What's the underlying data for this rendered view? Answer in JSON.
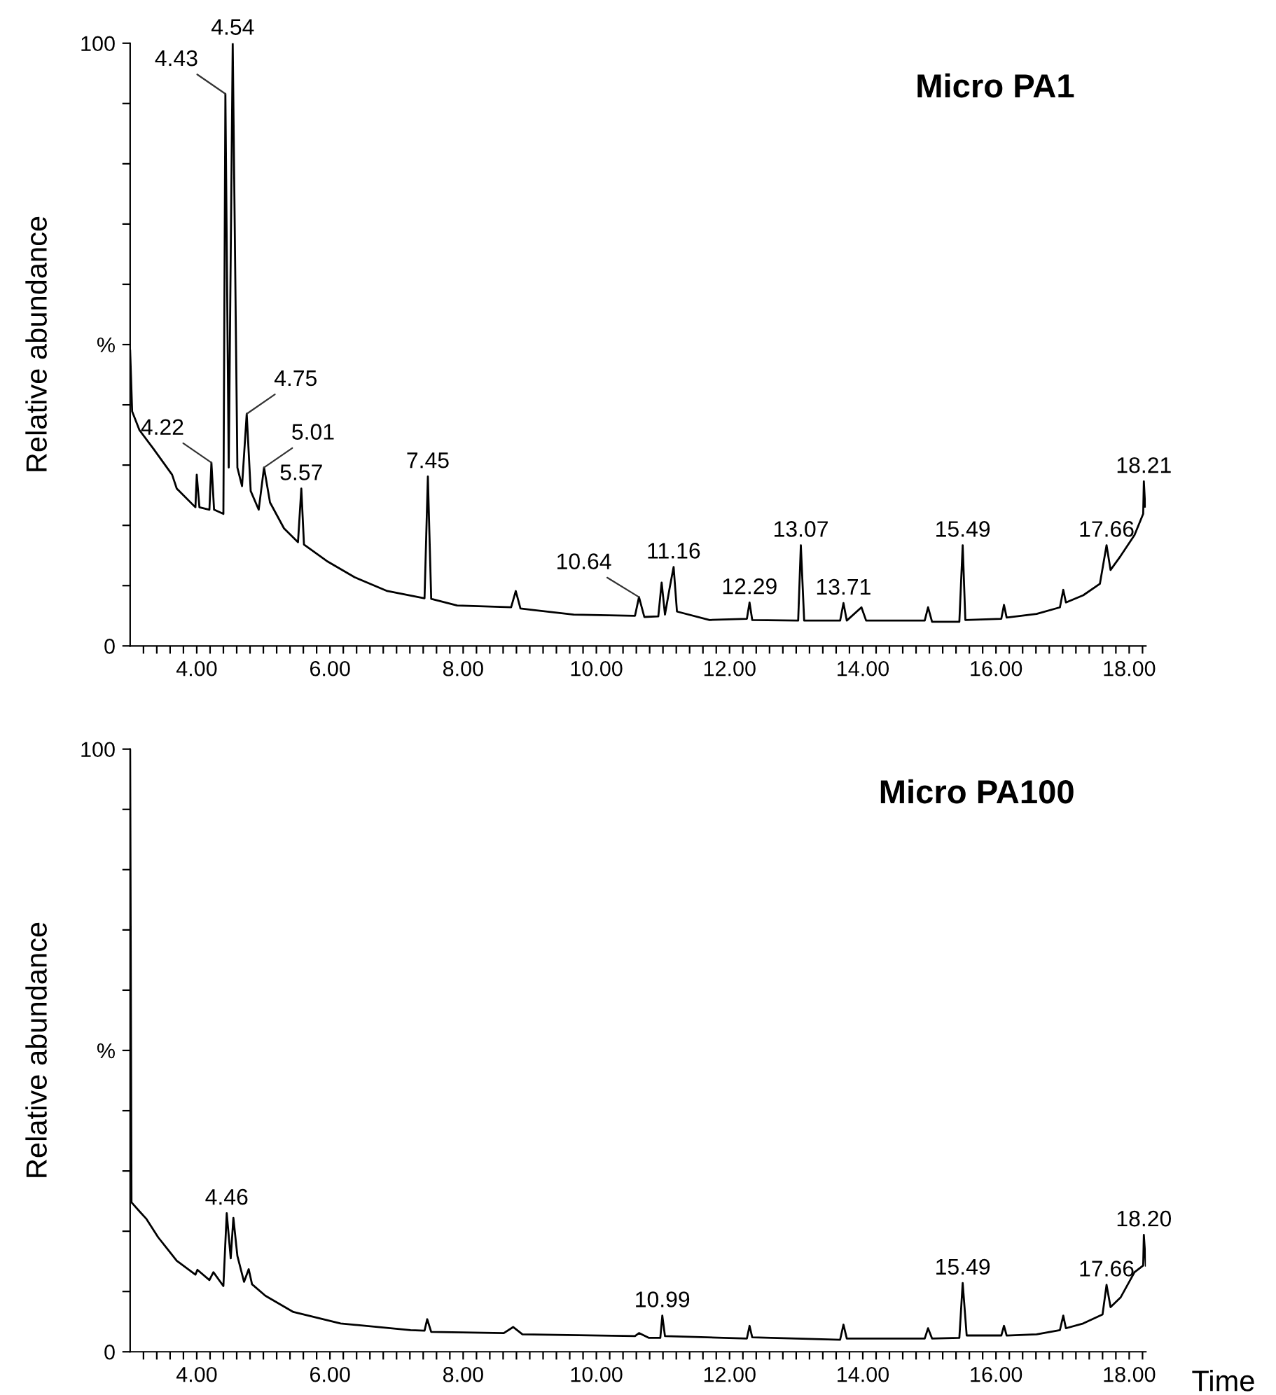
{
  "chart_data": [
    {
      "type": "line",
      "title": "Micro PA1",
      "ylabel": "Relative abundance",
      "xlim": [
        3.0,
        18.25
      ],
      "ylim": [
        0,
        100
      ],
      "xticks": [
        {
          "value": 3.2,
          "label": null
        },
        {
          "value": 3.4,
          "label": null
        },
        {
          "value": 3.6,
          "label": null
        },
        {
          "value": 3.8,
          "label": null
        },
        {
          "value": 4,
          "label": "4.00"
        },
        {
          "value": 4.2,
          "label": null
        },
        {
          "value": 4.4,
          "label": null
        },
        {
          "value": 4.6,
          "label": null
        },
        {
          "value": 4.8,
          "label": null
        },
        {
          "value": 5,
          "label": null
        },
        {
          "value": 5.2,
          "label": null
        },
        {
          "value": 5.4,
          "label": null
        },
        {
          "value": 5.6,
          "label": null
        },
        {
          "value": 5.8,
          "label": null
        },
        {
          "value": 6,
          "label": "6.00"
        },
        {
          "value": 6.2,
          "label": null
        },
        {
          "value": 6.4,
          "label": null
        },
        {
          "value": 6.6,
          "label": null
        },
        {
          "value": 6.8,
          "label": null
        },
        {
          "value": 7,
          "label": null
        },
        {
          "value": 7.2,
          "label": null
        },
        {
          "value": 7.4,
          "label": null
        },
        {
          "value": 7.6,
          "label": null
        },
        {
          "value": 7.8,
          "label": null
        },
        {
          "value": 8,
          "label": "8.00"
        },
        {
          "value": 8.2,
          "label": null
        },
        {
          "value": 8.4,
          "label": null
        },
        {
          "value": 8.6,
          "label": null
        },
        {
          "value": 8.8,
          "label": null
        },
        {
          "value": 9,
          "label": null
        },
        {
          "value": 9.2,
          "label": null
        },
        {
          "value": 9.4,
          "label": null
        },
        {
          "value": 9.6,
          "label": null
        },
        {
          "value": 9.8,
          "label": null
        },
        {
          "value": 10,
          "label": "10.00"
        },
        {
          "value": 10.2,
          "label": null
        },
        {
          "value": 10.4,
          "label": null
        },
        {
          "value": 10.6,
          "label": null
        },
        {
          "value": 10.8,
          "label": null
        },
        {
          "value": 11,
          "label": null
        },
        {
          "value": 11.2,
          "label": null
        },
        {
          "value": 11.4,
          "label": null
        },
        {
          "value": 11.6,
          "label": null
        },
        {
          "value": 11.8,
          "label": null
        },
        {
          "value": 12,
          "label": "12.00"
        },
        {
          "value": 12.2,
          "label": null
        },
        {
          "value": 12.4,
          "label": null
        },
        {
          "value": 12.6,
          "label": null
        },
        {
          "value": 12.8,
          "label": null
        },
        {
          "value": 13,
          "label": null
        },
        {
          "value": 13.2,
          "label": null
        },
        {
          "value": 13.4,
          "label": null
        },
        {
          "value": 13.6,
          "label": null
        },
        {
          "value": 13.8,
          "label": null
        },
        {
          "value": 14,
          "label": "14.00"
        },
        {
          "value": 14.2,
          "label": null
        },
        {
          "value": 14.4,
          "label": null
        },
        {
          "value": 14.6,
          "label": null
        },
        {
          "value": 14.8,
          "label": null
        },
        {
          "value": 15,
          "label": null
        },
        {
          "value": 15.2,
          "label": null
        },
        {
          "value": 15.4,
          "label": null
        },
        {
          "value": 15.6,
          "label": null
        },
        {
          "value": 15.8,
          "label": null
        },
        {
          "value": 16,
          "label": "16.00"
        },
        {
          "value": 16.2,
          "label": null
        },
        {
          "value": 16.4,
          "label": null
        },
        {
          "value": 16.6,
          "label": null
        },
        {
          "value": 16.8,
          "label": null
        },
        {
          "value": 17,
          "label": null
        },
        {
          "value": 17.2,
          "label": null
        },
        {
          "value": 17.4,
          "label": null
        },
        {
          "value": 17.6,
          "label": null
        },
        {
          "value": 17.8,
          "label": null
        },
        {
          "value": 18,
          "label": "18.00"
        },
        {
          "value": 18.2,
          "label": null
        }
      ],
      "yticks": [
        0,
        {
          "value": 10,
          "label": null
        },
        {
          "value": 20,
          "label": null
        },
        {
          "value": 30,
          "label": null
        },
        {
          "value": 40,
          "label": null
        },
        {
          "value": 50,
          "label": "%"
        },
        {
          "value": 60,
          "label": null
        },
        {
          "value": 70,
          "label": null
        },
        {
          "value": 80,
          "label": null
        },
        {
          "value": 90,
          "label": null
        },
        100
      ],
      "grid": false,
      "legend": false,
      "marker": "none",
      "line_style": "solid",
      "series": [
        {
          "color": "#000000",
          "x": [
            3.0,
            3.03,
            3.14,
            3.35,
            3.63,
            3.7,
            3.98,
            4.0,
            4.04,
            4.19,
            4.22,
            4.26,
            4.4,
            4.43,
            4.48,
            4.54,
            4.61,
            4.68,
            4.75,
            4.81,
            4.93,
            5.01,
            5.1,
            5.31,
            5.52,
            5.57,
            5.61,
            5.95,
            6.37,
            6.86,
            7.42,
            7.47,
            7.52,
            7.91,
            8.72,
            8.79,
            8.86,
            9.66,
            10.58,
            10.64,
            10.72,
            10.93,
            10.98,
            11.03,
            11.1,
            11.16,
            11.21,
            11.7,
            12.26,
            12.3,
            12.34,
            13.03,
            13.07,
            13.12,
            13.66,
            13.71,
            13.76,
            13.98,
            14.05,
            14.93,
            14.98,
            15.04,
            15.45,
            15.5,
            15.54,
            16.08,
            16.12,
            16.16,
            16.61,
            16.96,
            17.01,
            17.05,
            17.31,
            17.56,
            17.66,
            17.72,
            17.87,
            18.08,
            18.21,
            18.22,
            18.24
          ],
          "values": [
            49,
            38.9,
            35.8,
            32.7,
            28.4,
            26.1,
            23.0,
            28.4,
            23.0,
            22.6,
            30.4,
            22.6,
            21.9,
            91.6,
            29.6,
            100,
            29.6,
            26.5,
            38.5,
            25.7,
            22.6,
            29.6,
            23.8,
            19.5,
            17.2,
            26.1,
            16.8,
            14.1,
            11.4,
            9.1,
            7.9,
            28.1,
            7.8,
            6.7,
            6.4,
            9.1,
            6.2,
            5.2,
            5.0,
            8.1,
            4.8,
            4.9,
            10.5,
            5.2,
            9.6,
            13.1,
            5.7,
            4.3,
            4.5,
            7.2,
            4.3,
            4.2,
            16.7,
            4.2,
            4.2,
            7.1,
            4.2,
            6.4,
            4.2,
            4.2,
            6.4,
            4.0,
            4.0,
            16.7,
            4.3,
            4.5,
            6.8,
            4.7,
            5.3,
            6.4,
            9.3,
            7.2,
            8.4,
            10.3,
            16.7,
            12.6,
            14.9,
            18.4,
            21.9,
            27.3,
            23.1
          ]
        }
      ],
      "annotations": [
        {
          "text": "4.22",
          "x": 4.22,
          "y": 30.4
        },
        {
          "text": "4.43",
          "x": 4.43,
          "y": 91.6
        },
        {
          "text": "4.54",
          "x": 4.54,
          "y": 100
        },
        {
          "text": "4.75",
          "x": 4.75,
          "y": 38.5
        },
        {
          "text": "5.01",
          "x": 5.01,
          "y": 29.6
        },
        {
          "text": "5.57",
          "x": 5.57,
          "y": 26.1
        },
        {
          "text": "7.45",
          "x": 7.47,
          "y": 28.1
        },
        {
          "text": "10.64",
          "x": 10.64,
          "y": 8.1
        },
        {
          "text": "11.16",
          "x": 11.16,
          "y": 13.1
        },
        {
          "text": "12.29",
          "x": 12.3,
          "y": 7.2
        },
        {
          "text": "13.07",
          "x": 13.07,
          "y": 16.7
        },
        {
          "text": "13.71",
          "x": 13.71,
          "y": 7.1
        },
        {
          "text": "15.49",
          "x": 15.5,
          "y": 16.7
        },
        {
          "text": "17.66",
          "x": 17.66,
          "y": 16.7
        },
        {
          "text": "18.21",
          "x": 18.22,
          "y": 27.3
        }
      ]
    },
    {
      "type": "line",
      "title": "Micro PA100",
      "ylabel": "Relative abundance",
      "xlabel": "Time",
      "xlim": [
        3.0,
        18.25
      ],
      "ylim": [
        0,
        100
      ],
      "xticks": [
        {
          "value": 3.2,
          "label": null
        },
        {
          "value": 3.4,
          "label": null
        },
        {
          "value": 3.6,
          "label": null
        },
        {
          "value": 3.8,
          "label": null
        },
        {
          "value": 4,
          "label": "4.00"
        },
        {
          "value": 4.2,
          "label": null
        },
        {
          "value": 4.4,
          "label": null
        },
        {
          "value": 4.6,
          "label": null
        },
        {
          "value": 4.8,
          "label": null
        },
        {
          "value": 5,
          "label": null
        },
        {
          "value": 5.2,
          "label": null
        },
        {
          "value": 5.4,
          "label": null
        },
        {
          "value": 5.6,
          "label": null
        },
        {
          "value": 5.8,
          "label": null
        },
        {
          "value": 6,
          "label": "6.00"
        },
        {
          "value": 6.2,
          "label": null
        },
        {
          "value": 6.4,
          "label": null
        },
        {
          "value": 6.6,
          "label": null
        },
        {
          "value": 6.8,
          "label": null
        },
        {
          "value": 7,
          "label": null
        },
        {
          "value": 7.2,
          "label": null
        },
        {
          "value": 7.4,
          "label": null
        },
        {
          "value": 7.6,
          "label": null
        },
        {
          "value": 7.8,
          "label": null
        },
        {
          "value": 8,
          "label": "8.00"
        },
        {
          "value": 8.2,
          "label": null
        },
        {
          "value": 8.4,
          "label": null
        },
        {
          "value": 8.6,
          "label": null
        },
        {
          "value": 8.8,
          "label": null
        },
        {
          "value": 9,
          "label": null
        },
        {
          "value": 9.2,
          "label": null
        },
        {
          "value": 9.4,
          "label": null
        },
        {
          "value": 9.6,
          "label": null
        },
        {
          "value": 9.8,
          "label": null
        },
        {
          "value": 10,
          "label": "10.00"
        },
        {
          "value": 10.2,
          "label": null
        },
        {
          "value": 10.4,
          "label": null
        },
        {
          "value": 10.6,
          "label": null
        },
        {
          "value": 10.8,
          "label": null
        },
        {
          "value": 11,
          "label": null
        },
        {
          "value": 11.2,
          "label": null
        },
        {
          "value": 11.4,
          "label": null
        },
        {
          "value": 11.6,
          "label": null
        },
        {
          "value": 11.8,
          "label": null
        },
        {
          "value": 12,
          "label": "12.00"
        },
        {
          "value": 12.2,
          "label": null
        },
        {
          "value": 12.4,
          "label": null
        },
        {
          "value": 12.6,
          "label": null
        },
        {
          "value": 12.8,
          "label": null
        },
        {
          "value": 13,
          "label": null
        },
        {
          "value": 13.2,
          "label": null
        },
        {
          "value": 13.4,
          "label": null
        },
        {
          "value": 13.6,
          "label": null
        },
        {
          "value": 13.8,
          "label": null
        },
        {
          "value": 14,
          "label": "14.00"
        },
        {
          "value": 14.2,
          "label": null
        },
        {
          "value": 14.4,
          "label": null
        },
        {
          "value": 14.6,
          "label": null
        },
        {
          "value": 14.8,
          "label": null
        },
        {
          "value": 15,
          "label": null
        },
        {
          "value": 15.2,
          "label": null
        },
        {
          "value": 15.4,
          "label": null
        },
        {
          "value": 15.6,
          "label": null
        },
        {
          "value": 15.8,
          "label": null
        },
        {
          "value": 16,
          "label": "16.00"
        },
        {
          "value": 16.2,
          "label": null
        },
        {
          "value": 16.4,
          "label": null
        },
        {
          "value": 16.6,
          "label": null
        },
        {
          "value": 16.8,
          "label": null
        },
        {
          "value": 17,
          "label": null
        },
        {
          "value": 17.2,
          "label": null
        },
        {
          "value": 17.4,
          "label": null
        },
        {
          "value": 17.6,
          "label": null
        },
        {
          "value": 17.8,
          "label": null
        },
        {
          "value": 18,
          "label": "18.00"
        },
        {
          "value": 18.2,
          "label": null
        }
      ],
      "yticks": [
        0,
        {
          "value": 10,
          "label": null
        },
        {
          "value": 20,
          "label": null
        },
        {
          "value": 30,
          "label": null
        },
        {
          "value": 40,
          "label": null
        },
        {
          "value": 50,
          "label": "%"
        },
        {
          "value": 60,
          "label": null
        },
        {
          "value": 70,
          "label": null
        },
        {
          "value": 80,
          "label": null
        },
        {
          "value": 90,
          "label": null
        },
        100
      ],
      "grid": false,
      "legend": false,
      "marker": "none",
      "line_style": "solid",
      "series": [
        {
          "color": "#000000",
          "x": [
            3.0,
            3.02,
            3.14,
            3.24,
            3.42,
            3.7,
            3.98,
            4.01,
            4.19,
            4.25,
            4.4,
            4.45,
            4.51,
            4.55,
            4.61,
            4.71,
            4.78,
            4.83,
            5.03,
            5.45,
            6.16,
            7.21,
            7.42,
            7.46,
            7.52,
            8.61,
            8.75,
            8.89,
            10.58,
            10.64,
            10.79,
            10.96,
            10.99,
            11.03,
            12.26,
            12.3,
            12.34,
            13.66,
            13.71,
            13.76,
            14.93,
            14.98,
            15.04,
            15.45,
            15.5,
            15.56,
            16.08,
            16.12,
            16.16,
            16.61,
            16.96,
            17.01,
            17.05,
            17.31,
            17.6,
            17.66,
            17.72,
            17.87,
            18.08,
            18.21,
            18.22,
            18.25
          ],
          "values": [
            100,
            24.8,
            23.3,
            22.1,
            19.0,
            15.1,
            12.8,
            13.6,
            11.9,
            13.2,
            10.9,
            23.0,
            15.5,
            22.2,
            15.9,
            11.6,
            13.7,
            11.2,
            9.3,
            6.6,
            4.7,
            3.6,
            3.5,
            5.4,
            3.3,
            3.1,
            4.1,
            2.9,
            2.6,
            3.1,
            2.3,
            2.3,
            6.0,
            2.6,
            2.2,
            4.3,
            2.4,
            2.0,
            4.5,
            2.2,
            2.2,
            3.9,
            2.2,
            2.3,
            11.4,
            2.7,
            2.7,
            4.3,
            2.7,
            2.9,
            3.6,
            6.0,
            3.9,
            4.7,
            6.2,
            11.1,
            7.4,
            9.0,
            13.2,
            14.3,
            19.4,
            14.3
          ]
        }
      ],
      "annotations": [
        {
          "text": "4.46",
          "x": 4.45,
          "y": 23.0
        },
        {
          "text": "10.99",
          "x": 10.99,
          "y": 6.0
        },
        {
          "text": "15.49",
          "x": 15.5,
          "y": 11.4
        },
        {
          "text": "17.66",
          "x": 17.66,
          "y": 11.1
        },
        {
          "text": "18.20",
          "x": 18.22,
          "y": 19.4
        }
      ]
    }
  ]
}
